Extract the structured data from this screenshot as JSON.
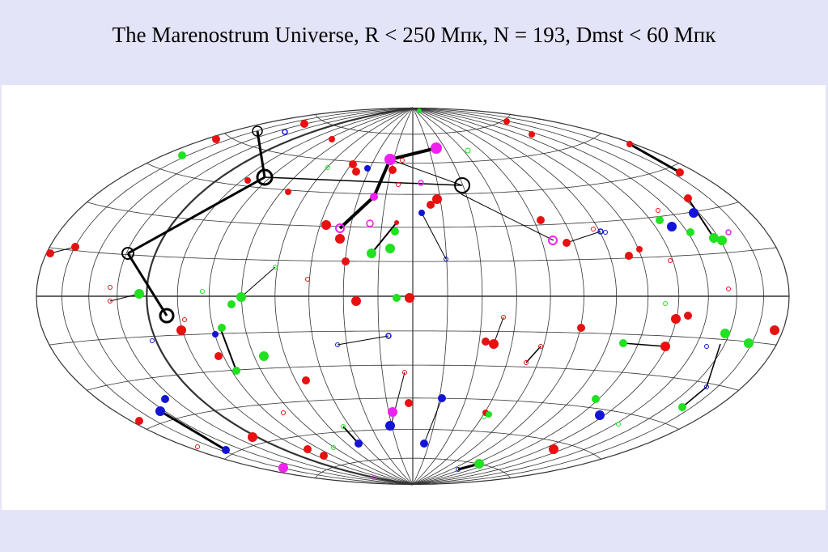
{
  "slide": {
    "title": "The Marenostrum Universe, R < 250 Мпк, N = 193, Dmst < 60 Мпк"
  }
}
